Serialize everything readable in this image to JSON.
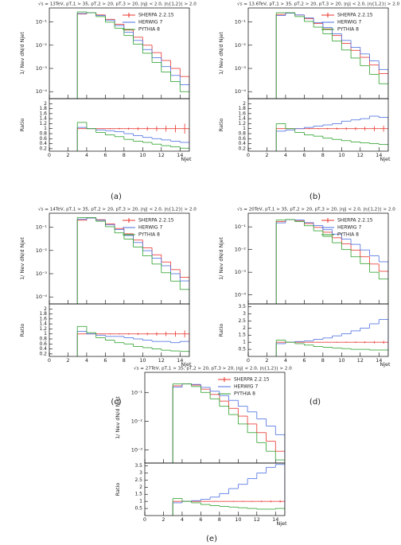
{
  "chart_data": [
    {
      "type": "histogram",
      "label": "(a)",
      "title": "√s = 13TeV, pT,1 > 35, pT,2 > 20, pT,3 > 20, |ηj| < 2.0, |η{1,2}| > 2.0",
      "ylabel": "1/ Nev dN/d Njet",
      "xlabel": "Njet",
      "bins": [
        3,
        4,
        5,
        6,
        7,
        8,
        9,
        10,
        11,
        12,
        13,
        14,
        15
      ],
      "xlim": [
        0,
        15
      ],
      "xticks": [
        0,
        2,
        4,
        6,
        8,
        10,
        12,
        14
      ],
      "ylog": true,
      "ylim": [
        5e-05,
        0.4
      ],
      "yticks": [
        {
          "value": 0.0001,
          "label": "10⁻⁴"
        },
        {
          "value": 0.001,
          "label": "10⁻³"
        },
        {
          "value": 0.01,
          "label": "10⁻²"
        },
        {
          "value": 0.1,
          "label": "10⁻¹"
        }
      ],
      "series": [
        {
          "name": "SHERPA  2.2.15",
          "color": "#e8312a",
          "values": [
            0.22,
            0.25,
            0.2,
            0.13,
            0.08,
            0.045,
            0.022,
            0.01,
            0.0048,
            0.0022,
            0.001,
            0.00045
          ]
        },
        {
          "name": "HERWIG  7",
          "color": "#4a6ee0",
          "values": [
            0.23,
            0.25,
            0.19,
            0.12,
            0.07,
            0.036,
            0.016,
            0.0065,
            0.0029,
            0.0012,
            0.0005,
            0.0002
          ]
        },
        {
          "name": "PYTHIA  8",
          "color": "#2ca02c",
          "values": [
            0.27,
            0.25,
            0.17,
            0.098,
            0.054,
            0.026,
            0.011,
            0.0045,
            0.0018,
            0.0007,
            0.00027,
            0.0001
          ]
        }
      ],
      "ratio": {
        "ylabel": "Ratio",
        "ylim": [
          0.1,
          2.2
        ],
        "yticks": [
          0.2,
          0.4,
          0.6,
          0.8,
          1,
          1.2,
          1.4,
          1.6,
          1.8,
          2
        ],
        "series": [
          {
            "color": "#e8312a",
            "values": [
              1,
              1,
              1,
              1,
              1,
              1,
              1,
              1,
              1,
              1,
              1,
              1
            ],
            "errors": [
              0.01,
              0.01,
              0.01,
              0.02,
              0.03,
              0.04,
              0.06,
              0.08,
              0.1,
              0.12,
              0.15,
              0.2
            ]
          },
          {
            "color": "#4a6ee0",
            "values": [
              1.05,
              1.0,
              0.95,
              0.92,
              0.88,
              0.8,
              0.72,
              0.65,
              0.6,
              0.55,
              0.5,
              0.45
            ]
          },
          {
            "color": "#2ca02c",
            "values": [
              1.25,
              1.0,
              0.85,
              0.75,
              0.68,
              0.57,
              0.5,
              0.45,
              0.38,
              0.32,
              0.27,
              0.22
            ]
          }
        ]
      }
    },
    {
      "type": "histogram",
      "label": "(b)",
      "title": "√s = 13.6TeV, pT,1 > 35, pT,2 > 20, pT,3 > 20, |ηj| < 2.0, |η{1,2}| > 2.0",
      "ylabel": "1/ Nev dN/d Njet",
      "xlabel": "Njet",
      "bins": [
        3,
        4,
        5,
        6,
        7,
        8,
        9,
        10,
        11,
        12,
        13,
        14,
        15
      ],
      "xlim": [
        0,
        15
      ],
      "xticks": [
        0,
        2,
        4,
        6,
        8,
        10,
        12,
        14
      ],
      "ylog": true,
      "ylim": [
        5e-05,
        0.4
      ],
      "yticks": [
        {
          "value": 0.0001,
          "label": "10⁻⁴"
        },
        {
          "value": 0.001,
          "label": "10⁻³"
        },
        {
          "value": 0.01,
          "label": "10⁻²"
        },
        {
          "value": 0.1,
          "label": "10⁻¹"
        }
      ],
      "series": [
        {
          "name": "SHERPA  2.2.15",
          "color": "#e8312a",
          "values": [
            0.21,
            0.25,
            0.2,
            0.14,
            0.085,
            0.05,
            0.026,
            0.012,
            0.006,
            0.003,
            0.0014,
            0.0006
          ]
        },
        {
          "name": "HERWIG  7",
          "color": "#4a6ee0",
          "values": [
            0.19,
            0.24,
            0.2,
            0.15,
            0.094,
            0.058,
            0.031,
            0.016,
            0.0081,
            0.0042,
            0.0021,
            0.0009
          ]
        },
        {
          "name": "PYTHIA  8",
          "color": "#2ca02c",
          "values": [
            0.25,
            0.25,
            0.17,
            0.105,
            0.06,
            0.031,
            0.015,
            0.0062,
            0.0028,
            0.0013,
            0.00056,
            0.00022
          ]
        }
      ],
      "ratio": {
        "ylabel": "Ratio",
        "ylim": [
          0.1,
          2.2
        ],
        "yticks": [
          0.2,
          0.4,
          0.6,
          0.8,
          1,
          1.2,
          1.4,
          1.6,
          1.8,
          2
        ],
        "series": [
          {
            "color": "#e8312a",
            "values": [
              1,
              1,
              1,
              1,
              1,
              1,
              1,
              1,
              1,
              1,
              1,
              1
            ],
            "errors": [
              0.01,
              0.01,
              0.01,
              0.02,
              0.02,
              0.03,
              0.04,
              0.05,
              0.06,
              0.08,
              0.1,
              0.12
            ]
          },
          {
            "color": "#4a6ee0",
            "values": [
              0.9,
              0.95,
              1.0,
              1.05,
              1.1,
              1.15,
              1.2,
              1.3,
              1.35,
              1.4,
              1.5,
              1.45
            ]
          },
          {
            "color": "#2ca02c",
            "values": [
              1.2,
              1.0,
              0.85,
              0.75,
              0.7,
              0.62,
              0.57,
              0.52,
              0.47,
              0.43,
              0.4,
              0.37
            ]
          }
        ]
      }
    },
    {
      "type": "histogram",
      "label": "(c)",
      "title": "√s = 14TeV, pT,1 > 35, pT,2 > 20, pT,3 > 20, |ηj| < 2.0, |η{1,2}| > 2.0",
      "ylabel": "1/ Nev dN/d Njet",
      "xlabel": "Njet",
      "bins": [
        3,
        4,
        5,
        6,
        7,
        8,
        9,
        10,
        11,
        12,
        13,
        14,
        15
      ],
      "xlim": [
        0,
        15
      ],
      "xticks": [
        0,
        2,
        4,
        6,
        8,
        10,
        12,
        14
      ],
      "ylog": true,
      "ylim": [
        5e-05,
        0.4
      ],
      "yticks": [
        {
          "value": 0.0001,
          "label": "10⁻⁴"
        },
        {
          "value": 0.001,
          "label": "10⁻³"
        },
        {
          "value": 0.01,
          "label": "10⁻²"
        },
        {
          "value": 0.1,
          "label": "10⁻¹"
        }
      ],
      "series": [
        {
          "name": "SHERPA  2.2.15",
          "color": "#e8312a",
          "values": [
            0.2,
            0.25,
            0.21,
            0.14,
            0.088,
            0.052,
            0.028,
            0.013,
            0.0065,
            0.0032,
            0.0015,
            0.0007
          ]
        },
        {
          "name": "HERWIG  7",
          "color": "#4a6ee0",
          "values": [
            0.22,
            0.25,
            0.2,
            0.126,
            0.079,
            0.044,
            0.022,
            0.0098,
            0.0046,
            0.0022,
            0.001,
            0.00049
          ]
        },
        {
          "name": "PYTHIA  8",
          "color": "#2ca02c",
          "values": [
            0.26,
            0.26,
            0.18,
            0.105,
            0.057,
            0.031,
            0.014,
            0.0059,
            0.0026,
            0.0011,
            0.00048,
            0.00021
          ]
        }
      ],
      "ratio": {
        "ylabel": "Ratio",
        "ylim": [
          0.1,
          2.2
        ],
        "yticks": [
          0.2,
          0.4,
          0.6,
          0.8,
          1,
          1.2,
          1.4,
          1.6,
          1.8,
          2
        ],
        "series": [
          {
            "color": "#e8312a",
            "values": [
              1,
              1,
              1,
              1,
              1,
              1,
              1,
              1,
              1,
              1,
              1,
              1
            ],
            "errors": [
              0.01,
              0.01,
              0.01,
              0.02,
              0.02,
              0.03,
              0.04,
              0.05,
              0.07,
              0.09,
              0.11,
              0.14
            ]
          },
          {
            "color": "#4a6ee0",
            "values": [
              1.1,
              1.0,
              0.95,
              0.9,
              0.9,
              0.85,
              0.8,
              0.75,
              0.7,
              0.7,
              0.65,
              0.7
            ]
          },
          {
            "color": "#2ca02c",
            "values": [
              1.3,
              1.05,
              0.85,
              0.75,
              0.65,
              0.6,
              0.5,
              0.45,
              0.4,
              0.35,
              0.32,
              0.3
            ]
          }
        ]
      }
    },
    {
      "type": "histogram",
      "label": "(d)",
      "title": "√s = 20TeV, pT,1 > 35, pT,2 > 20, pT,3 > 20, |ηj| < 2.0, |η{1,2}| > 2.0",
      "ylabel": "1/ Nev dN/d Njet",
      "xlabel": "Njet",
      "bins": [
        3,
        4,
        5,
        6,
        7,
        8,
        9,
        10,
        11,
        12,
        13,
        14,
        15
      ],
      "xlim": [
        0,
        15
      ],
      "xticks": [
        0,
        2,
        4,
        6,
        8,
        10,
        12,
        14
      ],
      "ylog": true,
      "ylim": [
        4e-05,
        0.4
      ],
      "yticks": [
        {
          "value": 0.0001,
          "label": "10⁻⁴"
        },
        {
          "value": 0.001,
          "label": "10⁻³"
        },
        {
          "value": 0.01,
          "label": "10⁻²"
        },
        {
          "value": 0.1,
          "label": "10⁻¹"
        }
      ],
      "series": [
        {
          "name": "SHERPA  2.2.15",
          "color": "#e8312a",
          "values": [
            0.17,
            0.21,
            0.19,
            0.14,
            0.095,
            0.058,
            0.033,
            0.018,
            0.0095,
            0.0048,
            0.0023,
            0.0011
          ]
        },
        {
          "name": "HERWIG  7",
          "color": "#4a6ee0",
          "values": [
            0.15,
            0.21,
            0.2,
            0.154,
            0.114,
            0.075,
            0.048,
            0.029,
            0.017,
            0.0096,
            0.0053,
            0.0029
          ]
        },
        {
          "name": "PYTHIA  8",
          "color": "#2ca02c",
          "values": [
            0.2,
            0.21,
            0.17,
            0.112,
            0.067,
            0.038,
            0.02,
            0.01,
            0.0048,
            0.0024,
            0.001,
            0.0005
          ]
        }
      ],
      "ratio": {
        "ylabel": "Ratio",
        "ylim": [
          0,
          3.7
        ],
        "yticks": [
          0.5,
          1,
          1.5,
          2,
          2.5,
          3,
          3.5
        ],
        "series": [
          {
            "color": "#e8312a",
            "values": [
              1,
              1,
              1,
              1,
              1,
              1,
              1,
              1,
              1,
              1,
              1,
              1
            ],
            "errors": [
              0.01,
              0.01,
              0.01,
              0.01,
              0.02,
              0.02,
              0.03,
              0.04,
              0.05,
              0.06,
              0.08,
              0.1
            ]
          },
          {
            "color": "#4a6ee0",
            "values": [
              0.9,
              1.0,
              1.05,
              1.1,
              1.2,
              1.3,
              1.45,
              1.6,
              1.8,
              2.0,
              2.3,
              2.6
            ]
          },
          {
            "color": "#2ca02c",
            "values": [
              1.15,
              1.0,
              0.9,
              0.8,
              0.7,
              0.65,
              0.6,
              0.55,
              0.5,
              0.5,
              0.45,
              0.45
            ]
          }
        ]
      }
    },
    {
      "type": "histogram",
      "label": "(e)",
      "title": "√s = 27TeV, pT,1 > 35, pT,2 > 20, pT,3 > 20, |ηj| < 2.0, |η{1,2}| > 2.0",
      "ylabel": "1/ Nev dN/d Njet",
      "xlabel": "Njet",
      "bins": [
        3,
        4,
        5,
        6,
        7,
        8,
        9,
        10,
        11,
        12,
        13,
        14,
        15
      ],
      "xlim": [
        0,
        15
      ],
      "xticks": [
        0,
        2,
        4,
        6,
        8,
        10,
        12,
        14
      ],
      "ylog": true,
      "ylim": [
        0.00035,
        0.5
      ],
      "yticks": [
        {
          "value": 0.001,
          "label": "10⁻³"
        },
        {
          "value": 0.01,
          "label": "10⁻²"
        },
        {
          "value": 0.1,
          "label": "10⁻¹"
        }
      ],
      "series": [
        {
          "name": "SHERPA  2.2.15",
          "color": "#e8312a",
          "values": [
            0.17,
            0.2,
            0.18,
            0.13,
            0.085,
            0.05,
            0.028,
            0.015,
            0.008,
            0.004,
            0.002,
            0.0009
          ]
        },
        {
          "name": "HERWIG  7",
          "color": "#4a6ee0",
          "values": [
            0.153,
            0.2,
            0.19,
            0.15,
            0.11,
            0.078,
            0.053,
            0.033,
            0.021,
            0.012,
            0.0068,
            0.0034
          ]
        },
        {
          "name": "PYTHIA  8",
          "color": "#2ca02c",
          "values": [
            0.2,
            0.2,
            0.16,
            0.1,
            0.06,
            0.033,
            0.017,
            0.008,
            0.004,
            0.0018,
            0.0009,
            0.00045
          ]
        }
      ],
      "ratio": {
        "ylabel": "Ratio",
        "ylim": [
          0,
          3.7
        ],
        "yticks": [
          0.5,
          1,
          1.5,
          2,
          2.5,
          3,
          3.5
        ],
        "series": [
          {
            "color": "#e8312a",
            "values": [
              1,
              1,
              1,
              1,
              1,
              1,
              1,
              1,
              1,
              1,
              1,
              1
            ],
            "errors": [
              0.01,
              0.01,
              0.01,
              0.01,
              0.02,
              0.02,
              0.03,
              0.03,
              0.04,
              0.05,
              0.06,
              0.08
            ]
          },
          {
            "color": "#4a6ee0",
            "values": [
              0.9,
              1.0,
              1.05,
              1.15,
              1.3,
              1.55,
              1.9,
              2.2,
              2.6,
              3.0,
              3.4,
              3.6
            ]
          },
          {
            "color": "#2ca02c",
            "values": [
              1.2,
              1.0,
              0.9,
              0.78,
              0.7,
              0.65,
              0.6,
              0.55,
              0.5,
              0.45,
              0.45,
              0.5
            ]
          }
        ]
      }
    }
  ]
}
